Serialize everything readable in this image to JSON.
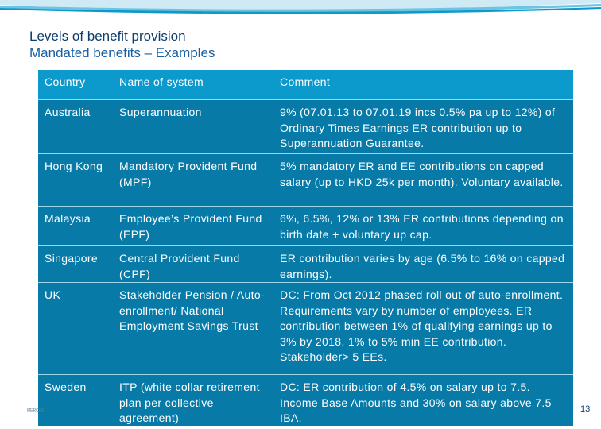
{
  "slide": {
    "title": "Levels of benefit provision",
    "subtitle": "Mandated benefits – Examples",
    "page_number": "13",
    "footer_mark": "MERCER"
  },
  "colors": {
    "header_bg": "#0c99cc",
    "row_bg": "#077aa8",
    "title": "#0b3d6e",
    "subtitle": "#1a5fa3"
  },
  "table": {
    "headers": [
      "Country",
      "Name of system",
      "Comment"
    ],
    "rows": [
      {
        "country": "Australia",
        "system": "Superannuation",
        "comment": "9% (07.01.13 to 07.01.19 incs 0.5% pa up to 12%) of Ordinary Times Earnings ER contribution up to Superannuation Guarantee."
      },
      {
        "country": "Hong Kong",
        "system": "Mandatory Provident Fund (MPF)",
        "comment": "5% mandatory ER and EE contributions on capped salary (up to HKD 25k per month). Voluntary available."
      },
      {
        "country": "Malaysia",
        "system": "Employee’s Provident Fund (EPF)",
        "comment": "6%, 6.5%, 12% or 13% ER contributions depending on birth date + voluntary up cap."
      },
      {
        "country": "Singapore",
        "system": "Central Provident Fund (CPF)",
        "comment": "ER contribution varies by age (6.5% to 16% on capped earnings)."
      },
      {
        "country": "UK",
        "system": "Stakeholder Pension / Auto-enrollment/ National Employment Savings Trust",
        "comment": "DC: From Oct 2012 phased roll out of auto-enrollment. Requirements vary by number of employees. ER contribution between 1% of qualifying earnings up to 3% by 2018. 1% to 5% min EE contribution. Stakeholder> 5 EEs."
      },
      {
        "country": "Sweden",
        "system": "ITP (white collar retirement plan per collective agreement)",
        "comment": "DC: ER contribution of 4.5% on salary up to 7.5. Income Base Amounts and 30% on salary above 7.5 IBA."
      }
    ]
  }
}
